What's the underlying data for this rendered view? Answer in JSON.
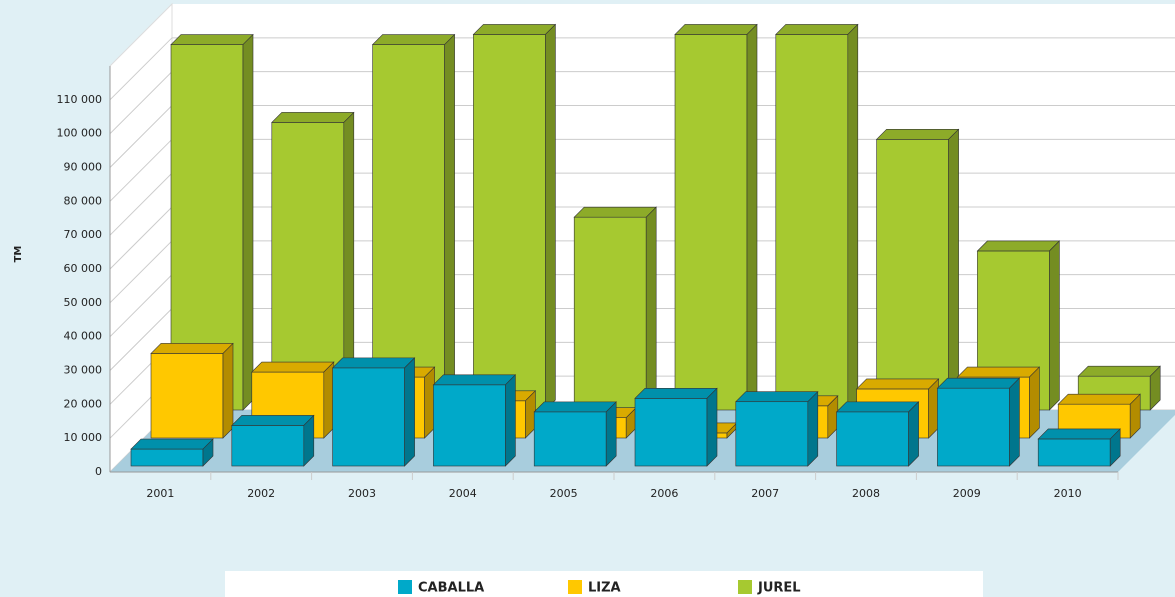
{
  "chart_data": {
    "type": "bar3d",
    "ylabel": "TM",
    "categories": [
      "2001",
      "2002",
      "2003",
      "2004",
      "2005",
      "2006",
      "2007",
      "2008",
      "2009",
      "2010"
    ],
    "series": [
      {
        "name": "CABALLA",
        "color": "#00a9c9",
        "values": [
          5000,
          12000,
          29000,
          24000,
          16000,
          20000,
          19000,
          16000,
          23000,
          8000
        ]
      },
      {
        "name": "LIZA",
        "color": "#ffc800",
        "values": [
          25000,
          19500,
          18000,
          11000,
          6000,
          1500,
          9500,
          14500,
          18000,
          10000
        ]
      },
      {
        "name": "JUREL",
        "color": "#a6c930",
        "values": [
          108000,
          85000,
          108000,
          111000,
          57000,
          111000,
          111000,
          80000,
          47000,
          10000
        ]
      }
    ],
    "ylim": [
      0,
      120000
    ],
    "yticks": [
      0,
      {
        "value": 10000,
        "label": "10 000"
      },
      {
        "value": 20000,
        "label": "20 000"
      },
      {
        "value": 30000,
        "label": "30 000"
      },
      {
        "value": 40000,
        "label": "40 000"
      },
      {
        "value": 50000,
        "label": "50 000"
      },
      {
        "value": 60000,
        "label": "60 000"
      },
      {
        "value": 70000,
        "label": "70 000"
      },
      {
        "value": 80000,
        "label": "80 000"
      },
      {
        "value": 90000,
        "label": "90 000"
      },
      {
        "value": 100000,
        "label": "100 000"
      },
      {
        "value": 110000,
        "label": "110 000"
      }
    ],
    "grid": true
  }
}
